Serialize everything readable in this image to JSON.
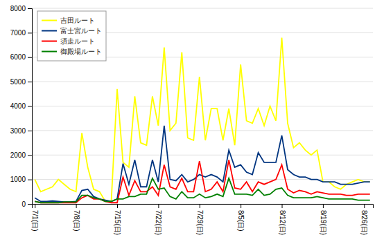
{
  "chart_data": {
    "type": "line",
    "categories": [
      "7/1(日)",
      null,
      null,
      null,
      null,
      null,
      null,
      "7/8(日)",
      null,
      null,
      null,
      null,
      null,
      null,
      "7/15(日)",
      null,
      null,
      null,
      null,
      null,
      null,
      "7/22(日)",
      null,
      null,
      null,
      null,
      null,
      null,
      "7/29(日)",
      null,
      null,
      null,
      null,
      null,
      null,
      "8/5(日)",
      null,
      null,
      null,
      null,
      null,
      null,
      "8/12(日)",
      null,
      null,
      null,
      null,
      null,
      null,
      "8/19(日)",
      null,
      null,
      null,
      null,
      null,
      null,
      "8/26(日)",
      null
    ],
    "series": [
      {
        "name": "吉田ルート",
        "color": "#FFFF00",
        "values": [
          1000,
          500,
          600,
          700,
          1000,
          800,
          600,
          500,
          2900,
          1500,
          600,
          500,
          100,
          100,
          4700,
          1700,
          1500,
          4400,
          2500,
          2400,
          4400,
          3200,
          6400,
          3000,
          3300,
          6200,
          2700,
          2600,
          5200,
          2600,
          3900,
          3900,
          2600,
          3900,
          2400,
          5700,
          3400,
          3300,
          3900,
          3200,
          4000,
          3400,
          6800,
          3300,
          2300,
          2500,
          2200,
          2000,
          2200,
          900,
          900,
          700,
          600,
          800,
          900,
          1000,
          900,
          900
        ]
      },
      {
        "name": "富士宮ルート",
        "color": "#003580",
        "values": [
          250,
          100,
          100,
          120,
          100,
          80,
          80,
          100,
          550,
          600,
          300,
          200,
          150,
          100,
          200,
          1650,
          800,
          1800,
          700,
          700,
          1800,
          900,
          3200,
          1000,
          950,
          1200,
          900,
          1000,
          1200,
          1100,
          1200,
          1100,
          900,
          2200,
          1500,
          1600,
          1300,
          1200,
          2100,
          1700,
          1700,
          1700,
          2800,
          1400,
          1200,
          1100,
          1100,
          1000,
          1000,
          900,
          900,
          900,
          800,
          800,
          800,
          850,
          900,
          900
        ]
      },
      {
        "name": "須走ルート",
        "color": "#FF0000",
        "values": [
          100,
          50,
          50,
          50,
          50,
          50,
          50,
          50,
          250,
          350,
          200,
          200,
          100,
          50,
          50,
          1100,
          350,
          950,
          500,
          500,
          700,
          350,
          1600,
          700,
          600,
          1050,
          500,
          500,
          1750,
          500,
          600,
          900,
          500,
          1800,
          650,
          600,
          900,
          500,
          900,
          800,
          900,
          1000,
          1600,
          600,
          450,
          550,
          500,
          400,
          500,
          450,
          400,
          400,
          400,
          350,
          350,
          400,
          400,
          400
        ]
      },
      {
        "name": "御殿場ルート",
        "color": "#008000",
        "values": [
          100,
          50,
          50,
          50,
          50,
          80,
          80,
          80,
          350,
          350,
          250,
          200,
          100,
          100,
          200,
          200,
          300,
          300,
          400,
          400,
          1050,
          600,
          650,
          300,
          200,
          500,
          250,
          250,
          400,
          250,
          300,
          400,
          300,
          1050,
          400,
          400,
          400,
          350,
          600,
          350,
          400,
          600,
          650,
          350,
          250,
          250,
          250,
          250,
          300,
          250,
          200,
          200,
          200,
          200,
          200,
          150,
          150,
          150
        ]
      }
    ],
    "ylim": [
      0,
      8000
    ],
    "yticks": [
      0,
      1000,
      2000,
      3000,
      4000,
      5000,
      6000,
      7000,
      8000
    ],
    "grid": true,
    "legend": "upper left"
  }
}
